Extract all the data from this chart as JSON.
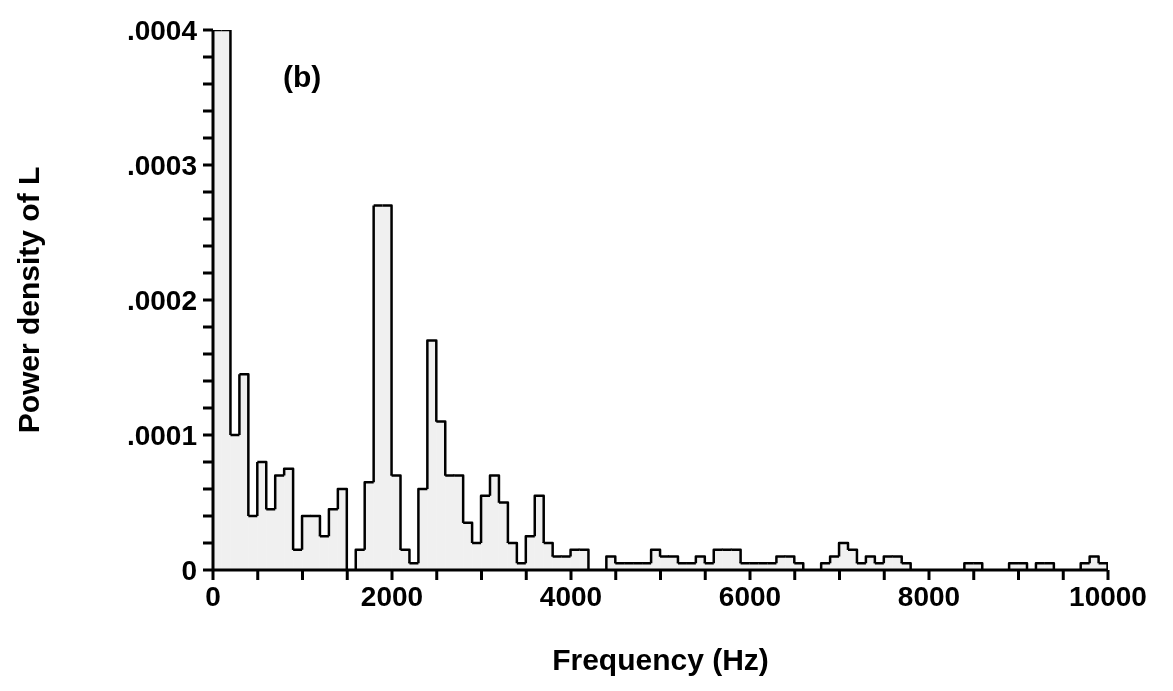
{
  "chart_data": {
    "type": "histogram",
    "xlabel": "Frequency (Hz)",
    "ylabel": "Power density of L",
    "annotations": [
      "(b)"
    ],
    "color": "#000000",
    "bins": [
      0,
      100,
      200,
      300,
      400,
      500,
      600,
      700,
      800,
      900,
      1000,
      1100,
      1200,
      1300,
      1400,
      1500,
      1600,
      1700,
      1800,
      1900,
      2000,
      2100,
      2200,
      2300,
      2400,
      2500,
      2600,
      2700,
      2800,
      2900,
      3000,
      3100,
      3200,
      3300,
      3400,
      3500,
      3600,
      3700,
      3800,
      3900,
      4000,
      4100,
      4200,
      4300,
      4400,
      4500,
      4600,
      4700,
      4800,
      4900,
      5000,
      5100,
      5200,
      5300,
      5400,
      5500,
      5600,
      5700,
      5800,
      5900,
      6000,
      6100,
      6200,
      6300,
      6400,
      6500,
      6600,
      6700,
      6800,
      6900,
      7000,
      7100,
      7200,
      7300,
      7400,
      7500,
      7600,
      7700,
      7800,
      7900,
      8000,
      8100,
      8200,
      8300,
      8400,
      8500,
      8600,
      8700,
      8800,
      8900,
      9000,
      9100,
      9200,
      9300,
      9400,
      9500,
      9600,
      9700,
      9800,
      9900,
      10000
    ],
    "values": [
      0.0004,
      0.0004,
      0.0001,
      0.000145,
      4e-05,
      8e-05,
      4.5e-05,
      7e-05,
      7.5e-05,
      1.5e-05,
      4e-05,
      4e-05,
      2.5e-05,
      4.5e-05,
      6e-05,
      0,
      1.5e-05,
      6.5e-05,
      0.00027,
      0.00027,
      7e-05,
      1.5e-05,
      5e-06,
      6e-05,
      0.00017,
      0.00011,
      7e-05,
      7e-05,
      3.5e-05,
      2e-05,
      5.5e-05,
      7e-05,
      5e-05,
      2e-05,
      5e-06,
      2.5e-05,
      5.5e-05,
      2e-05,
      1e-05,
      1e-05,
      1.5e-05,
      1.5e-05,
      0,
      0,
      1e-05,
      5e-06,
      5e-06,
      5e-06,
      5e-06,
      1.5e-05,
      1e-05,
      1e-05,
      5e-06,
      5e-06,
      1e-05,
      5e-06,
      1.5e-05,
      1.5e-05,
      1.5e-05,
      5e-06,
      5e-06,
      5e-06,
      5e-06,
      1e-05,
      1e-05,
      5e-06,
      0,
      0,
      5e-06,
      1e-05,
      2e-05,
      1.5e-05,
      5e-06,
      1e-05,
      5e-06,
      1e-05,
      1e-05,
      5e-06,
      0,
      0,
      0,
      0,
      0,
      0,
      5e-06,
      5e-06,
      0,
      0,
      0,
      5e-06,
      5e-06,
      0,
      5e-06,
      5e-06,
      0,
      0,
      0,
      5e-06,
      1e-05,
      5e-06
    ],
    "xlim": [
      0,
      10000
    ],
    "xticks": [
      0,
      {
        "value": 500,
        "label": null
      },
      {
        "value": 1000,
        "label": null
      },
      {
        "value": 1500,
        "label": null
      },
      2000,
      {
        "value": 2500,
        "label": null
      },
      {
        "value": 3000,
        "label": null
      },
      {
        "value": 3500,
        "label": null
      },
      4000,
      {
        "value": 4500,
        "label": null
      },
      {
        "value": 5000,
        "label": null
      },
      {
        "value": 5500,
        "label": null
      },
      6000,
      {
        "value": 6500,
        "label": null
      },
      {
        "value": 7000,
        "label": null
      },
      {
        "value": 7500,
        "label": null
      },
      8000,
      {
        "value": 8500,
        "label": null
      },
      {
        "value": 9000,
        "label": null
      },
      {
        "value": 9500,
        "label": null
      },
      10000
    ],
    "ylim": [
      0,
      0.0004
    ],
    "yticks": [
      0,
      {
        "value": 2e-05,
        "label": null
      },
      {
        "value": 4e-05,
        "label": null
      },
      {
        "value": 6e-05,
        "label": null
      },
      {
        "value": 8e-05,
        "label": null
      },
      {
        "value": 0.0001,
        "label": ".0001"
      },
      {
        "value": 0.00012,
        "label": null
      },
      {
        "value": 0.00014,
        "label": null
      },
      {
        "value": 0.00016,
        "label": null
      },
      {
        "value": 0.00018,
        "label": null
      },
      {
        "value": 0.0002,
        "label": ".0002"
      },
      {
        "value": 0.00022,
        "label": null
      },
      {
        "value": 0.00024,
        "label": null
      },
      {
        "value": 0.00026,
        "label": null
      },
      {
        "value": 0.00028,
        "label": null
      },
      {
        "value": 0.0003,
        "label": ".0003"
      },
      {
        "value": 0.00032,
        "label": null
      },
      {
        "value": 0.00034,
        "label": null
      },
      {
        "value": 0.00036,
        "label": null
      },
      {
        "value": 0.00038,
        "label": null
      },
      {
        "value": 0.0004,
        "label": ".0004"
      }
    ],
    "grid": false
  }
}
